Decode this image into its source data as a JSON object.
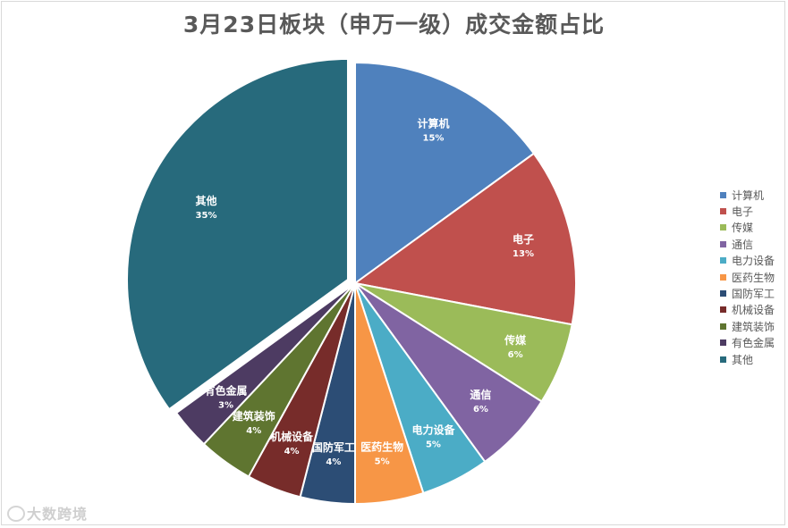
{
  "chart_data": {
    "type": "pie",
    "title": "3月23日板块（申万一级）成交金额占比",
    "legend_position": "right",
    "slices": [
      {
        "name": "计算机",
        "value": 15,
        "label": "15%",
        "color": "#4F81BD"
      },
      {
        "name": "电子",
        "value": 13,
        "label": "13%",
        "color": "#C0504D"
      },
      {
        "name": "传媒",
        "value": 6,
        "label": "6%",
        "color": "#9BBB59"
      },
      {
        "name": "通信",
        "value": 6,
        "label": "6%",
        "color": "#8064A2"
      },
      {
        "name": "电力设备",
        "value": 5,
        "label": "5%",
        "color": "#4BACC6"
      },
      {
        "name": "医药生物",
        "value": 5,
        "label": "5%",
        "color": "#F79646"
      },
      {
        "name": "国防军工",
        "value": 4,
        "label": "4%",
        "color": "#2C4D75"
      },
      {
        "name": "机械设备",
        "value": 4,
        "label": "4%",
        "color": "#772C2A"
      },
      {
        "name": "建筑装饰",
        "value": 4,
        "label": "4%",
        "color": "#5F7530"
      },
      {
        "name": "有色金属",
        "value": 3,
        "label": "3%",
        "color": "#4D3B62"
      },
      {
        "name": "其他",
        "value": 35,
        "label": "35%",
        "color": "#276A7C"
      }
    ]
  },
  "watermark": {
    "text": "大数跨境"
  }
}
